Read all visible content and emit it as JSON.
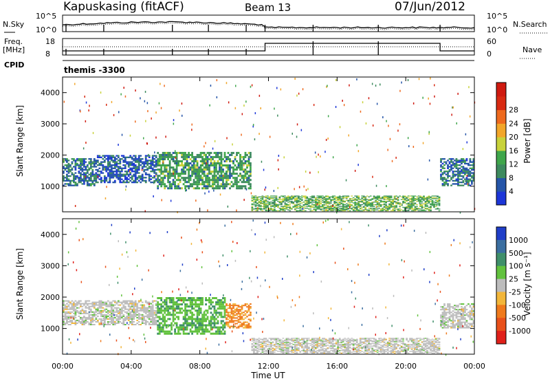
{
  "header": {
    "station": "Kapuskasing (fitACF)",
    "beam": "Beam 13",
    "date": "07/Jun/2012"
  },
  "top_panel": {
    "left_label": "N.Sky",
    "right_label": "N.Search",
    "left_ticks": [
      "10^5",
      "10^0"
    ],
    "right_ticks": [
      "10^5",
      "10^0"
    ]
  },
  "freq_panel": {
    "left_label_1": "Freq.",
    "left_label_2": "[MHz]",
    "right_label": "Nave",
    "left_ticks": [
      "18",
      "8"
    ],
    "right_ticks": [
      "60",
      "0"
    ]
  },
  "cpid": {
    "label": "CPID",
    "value": "themis -3300"
  },
  "power_panel": {
    "ylabel": "Slant Range [km]",
    "yticks": [
      "1000",
      "2000",
      "3000",
      "4000"
    ],
    "colorbar_label": "Power [dB]",
    "colorbar_ticks": [
      "4",
      "8",
      "12",
      "16",
      "20",
      "24",
      "28"
    ],
    "colors": [
      "#1c36d8",
      "#2555a8",
      "#3d8a5e",
      "#3fa64b",
      "#c8d23a",
      "#f2a62a",
      "#ee6a1e",
      "#d82a12",
      "#cf1a10"
    ]
  },
  "velocity_panel": {
    "ylabel": "Slant Range [km]",
    "yticks": [
      "1000",
      "2000",
      "3000",
      "4000"
    ],
    "colorbar_label": "Velocity [m s⁻¹]",
    "colorbar_ticks": [
      "1000",
      "500",
      "100",
      "25",
      "-25",
      "-100",
      "-500",
      "-1000"
    ],
    "colors": [
      "#1f3ec8",
      "#3b6ea0",
      "#3f8f6a",
      "#62c23e",
      "#bcbcbc",
      "#f2b63a",
      "#ef7a1c",
      "#e8501a",
      "#e0201a"
    ]
  },
  "x_axis": {
    "label": "Time UT",
    "ticks": [
      "00:00",
      "04:00",
      "08:00",
      "12:00",
      "16:00",
      "20:00",
      "00:00"
    ]
  },
  "chart_data": [
    {
      "type": "heatmap",
      "title": "Power",
      "x_range_hours": [
        0,
        24
      ],
      "ylim": [
        180,
        4500
      ],
      "ylabel": "Slant Range [km]",
      "xlabel": "",
      "colorbar": {
        "label": "Power [dB]",
        "range": [
          0,
          30
        ]
      },
      "regions": [
        {
          "t0": 0.0,
          "t1": 2.0,
          "r0": 1000,
          "r1": 1900,
          "level_dB": 8
        },
        {
          "t0": 2.0,
          "t1": 5.5,
          "r0": 1100,
          "r1": 2000,
          "level_dB": 6
        },
        {
          "t0": 5.5,
          "t1": 11.0,
          "r0": 900,
          "r1": 2100,
          "level_dB": 12
        },
        {
          "t0": 11.0,
          "t1": 22.0,
          "r0": 200,
          "r1": 700,
          "level_dB": 14
        },
        {
          "t0": 22.0,
          "t1": 24.0,
          "r0": 1000,
          "r1": 1900,
          "level_dB": 8
        }
      ]
    },
    {
      "type": "heatmap",
      "title": "Velocity",
      "x_range_hours": [
        0,
        24
      ],
      "ylim": [
        180,
        4500
      ],
      "ylabel": "Slant Range [km]",
      "xlabel": "Time UT",
      "colorbar": {
        "label": "Velocity [m s-1]",
        "range": [
          -1000,
          1000
        ]
      },
      "regions": [
        {
          "t0": 0.0,
          "t1": 5.5,
          "r0": 1100,
          "r1": 1900,
          "velocity": 0
        },
        {
          "t0": 5.5,
          "t1": 9.5,
          "r0": 800,
          "r1": 2000,
          "velocity": 100
        },
        {
          "t0": 9.5,
          "t1": 11.0,
          "r0": 1000,
          "r1": 1800,
          "velocity": -200
        },
        {
          "t0": 11.0,
          "t1": 22.0,
          "r0": 200,
          "r1": 700,
          "velocity": 0
        },
        {
          "t0": 22.0,
          "t1": 24.0,
          "r0": 1000,
          "r1": 1800,
          "velocity": 0
        }
      ]
    }
  ]
}
